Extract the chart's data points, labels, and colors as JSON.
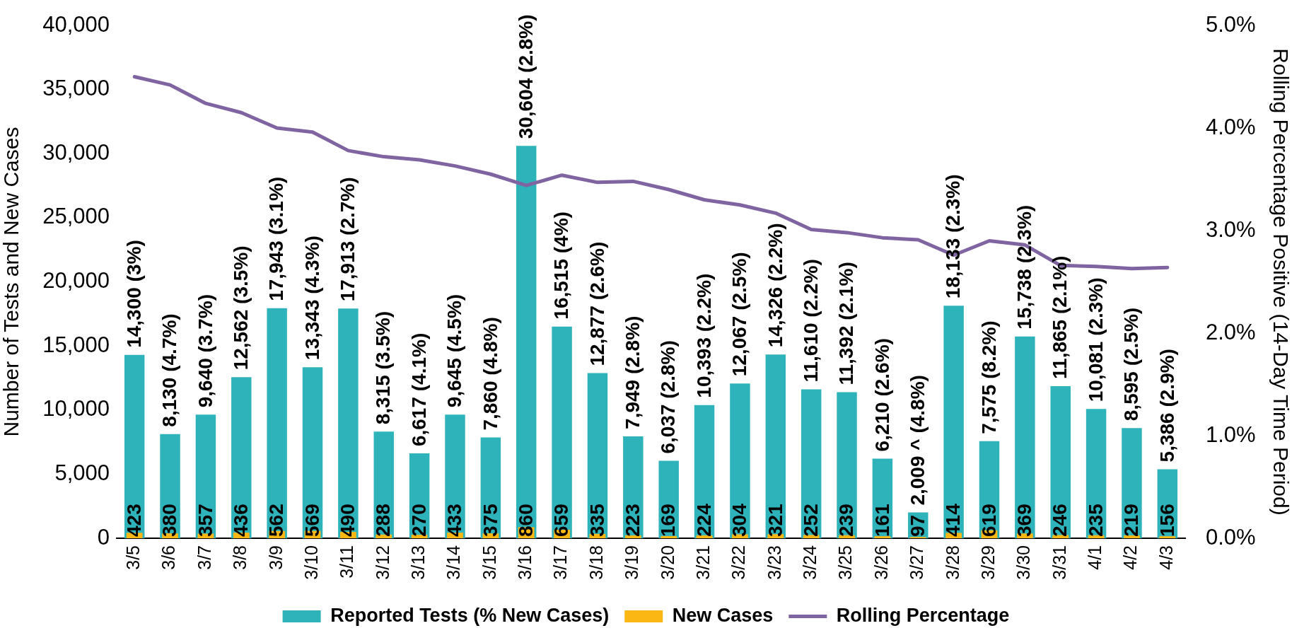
{
  "chart_data": {
    "type": "bar",
    "ylabel": "Number of Tests and New Cases",
    "y2label": "Rolling Percentage Positive (14-Day Time Period)",
    "categories": [
      "3/5",
      "3/6",
      "3/7",
      "3/8",
      "3/9",
      "3/10",
      "3/11",
      "3/12",
      "3/13",
      "3/14",
      "3/15",
      "3/16",
      "3/17",
      "3/18",
      "3/19",
      "3/20",
      "3/21",
      "3/22",
      "3/23",
      "3/24",
      "3/25",
      "3/26",
      "3/27",
      "3/28",
      "3/29",
      "3/30",
      "3/31",
      "4/1",
      "4/2",
      "4/3"
    ],
    "series": [
      {
        "name": "Reported Tests (% New Cases)",
        "color": "#2fb3bb",
        "values": [
          14300,
          8130,
          9640,
          12562,
          17943,
          13343,
          17913,
          8315,
          6617,
          9645,
          7860,
          30604,
          16515,
          12877,
          7949,
          6037,
          10393,
          12067,
          14326,
          11610,
          11392,
          6210,
          2009,
          18133,
          7575,
          15738,
          11865,
          10081,
          8595,
          5386
        ],
        "value_labels": [
          "14,300 (3%)",
          "8,130 (4.7%)",
          "9,640 (3.7%)",
          "12,562 (3.5%)",
          "17,943 (3.1%)",
          "13,343 (4.3%)",
          "17,913 (2.7%)",
          "8,315 (3.5%)",
          "6,617 (4.1%)",
          "9,645 (4.5%)",
          "7,860 (4.8%)",
          "30,604 (2.8%)",
          "16,515 (4%)",
          "12,877 (2.6%)",
          "7,949 (2.8%)",
          "6,037 (2.8%)",
          "10,393 (2.2%)",
          "12,067 (2.5%)",
          "14,326 (2.2%)",
          "11,610 (2.2%)",
          "11,392 (2.1%)",
          "6,210 (2.6%)",
          "2,009 ^ (4.8%)",
          "18,133 (2.3%)",
          "7,575 (8.2%)",
          "15,738 (2.3%)",
          "11,865 (2.1%)",
          "10,081 (2.3%)",
          "8,595 (2.5%)",
          "5,386 (2.9%)"
        ]
      },
      {
        "name": "New Cases",
        "color": "#fbb714",
        "values": [
          423,
          380,
          357,
          436,
          562,
          569,
          490,
          288,
          270,
          433,
          375,
          860,
          659,
          335,
          223,
          169,
          224,
          304,
          321,
          252,
          239,
          161,
          97,
          414,
          619,
          369,
          246,
          235,
          219,
          156
        ],
        "value_labels": [
          "423",
          "380",
          "357",
          "436",
          "562",
          "569",
          "490",
          "288",
          "270",
          "433",
          "375",
          "860",
          "659",
          "335",
          "223",
          "169",
          "224",
          "304",
          "321",
          "252",
          "239",
          "161",
          "97",
          "414",
          "619",
          "369",
          "246",
          "235",
          "219",
          "156"
        ]
      },
      {
        "name": "Rolling Percentage",
        "type": "line",
        "axis": "y2",
        "color": "#8064a2",
        "values": [
          4.5,
          4.42,
          4.24,
          4.15,
          4.0,
          3.96,
          3.78,
          3.72,
          3.69,
          3.63,
          3.55,
          3.44,
          3.54,
          3.47,
          3.48,
          3.4,
          3.3,
          3.25,
          3.17,
          3.01,
          2.98,
          2.93,
          2.91,
          2.76,
          2.9,
          2.86,
          2.66,
          2.65,
          2.63,
          2.64
        ]
      }
    ],
    "ylim": [
      0,
      40000
    ],
    "yticks": [
      0,
      {
        "value": 5000,
        "label": "5,000"
      },
      {
        "value": 10000,
        "label": "10,000"
      },
      {
        "value": 15000,
        "label": "15,000"
      },
      {
        "value": 20000,
        "label": "20,000"
      },
      {
        "value": 25000,
        "label": "25,000"
      },
      {
        "value": 30000,
        "label": "30,000"
      },
      {
        "value": 35000,
        "label": "35,000"
      },
      {
        "value": 40000,
        "label": "40,000"
      }
    ],
    "y2lim": [
      0,
      5
    ],
    "y2ticks": [
      {
        "value": 0,
        "label": "0.0%"
      },
      {
        "value": 1,
        "label": "1.0%"
      },
      {
        "value": 2,
        "label": "2.0%"
      },
      {
        "value": 3,
        "label": "3.0%"
      },
      {
        "value": 4,
        "label": "4.0%"
      },
      {
        "value": 5,
        "label": "5.0%"
      }
    ],
    "legend": "bottom",
    "marker": "none"
  }
}
